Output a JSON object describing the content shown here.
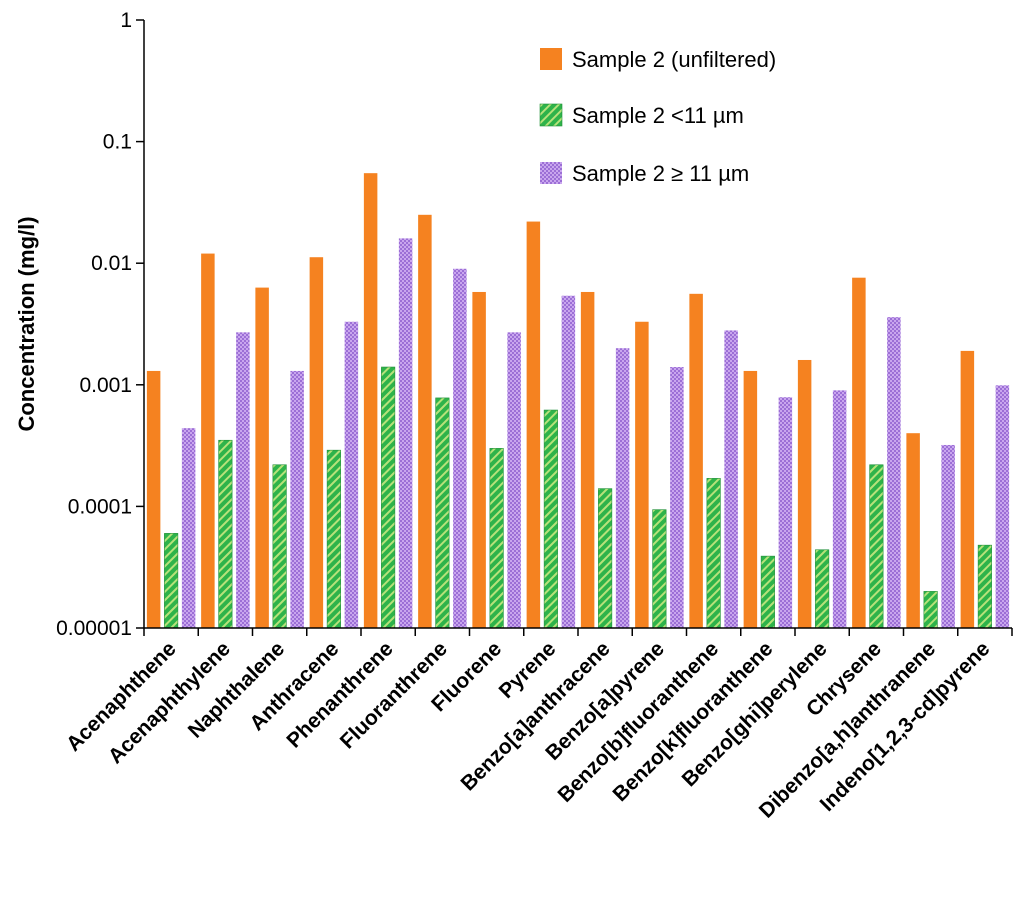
{
  "chart_data": {
    "type": "bar",
    "title": "",
    "xlabel": "",
    "ylabel": "Concentration (mg/l)",
    "yscale": "log",
    "ylim": [
      1e-05,
      1
    ],
    "y_ticks": [
      {
        "value": 1,
        "label": "1"
      },
      {
        "value": 0.1,
        "label": "0.1"
      },
      {
        "value": 0.01,
        "label": "0.01"
      },
      {
        "value": 0.001,
        "label": "0.001"
      },
      {
        "value": 0.0001,
        "label": "0.0001"
      },
      {
        "value": 1e-05,
        "label": "0.00001"
      }
    ],
    "grid": false,
    "legend_position": "top-right",
    "categories": [
      "Acenaphthene",
      "Acenaphthylene",
      "Naphthalene",
      "Anthracene",
      "Phenanthrene",
      "Fluoranthrene",
      "Fluorene",
      "Pyrene",
      "Benzo[a]anthracene",
      "Benzo[a]pyrene",
      "Benzo[b]fluoranthene",
      "Benzo[k]fluoranthene",
      "Benzo[ghi]perylene",
      "Chrysene",
      "Dibenzo[a,h]anthranene",
      "Indeno[1,2,3-cd]pyrene"
    ],
    "series": [
      {
        "name": "Sample 2 (unfiltered)",
        "color": "#f58220",
        "values": [
          0.0013,
          0.012,
          0.0063,
          0.0112,
          0.055,
          0.025,
          0.0058,
          0.022,
          0.0058,
          0.0033,
          0.0056,
          0.0013,
          0.0016,
          0.0076,
          0.0004,
          0.0019
        ]
      },
      {
        "name": "Sample 2 <11 µm",
        "color": "#2eb34a",
        "values": [
          6e-05,
          0.00035,
          0.00022,
          0.00029,
          0.0014,
          0.00078,
          0.0003,
          0.00062,
          0.00014,
          9.4e-05,
          0.00017,
          3.9e-05,
          4.4e-05,
          0.00022,
          2e-05,
          4.8e-05
        ]
      },
      {
        "name": "Sample 2 ≥ 11 µm",
        "color": "#b58be0",
        "values": [
          0.00044,
          0.0027,
          0.0013,
          0.0033,
          0.016,
          0.009,
          0.0027,
          0.0054,
          0.002,
          0.0014,
          0.0028,
          0.00079,
          0.0009,
          0.0036,
          0.00032,
          0.00099
        ]
      }
    ]
  }
}
